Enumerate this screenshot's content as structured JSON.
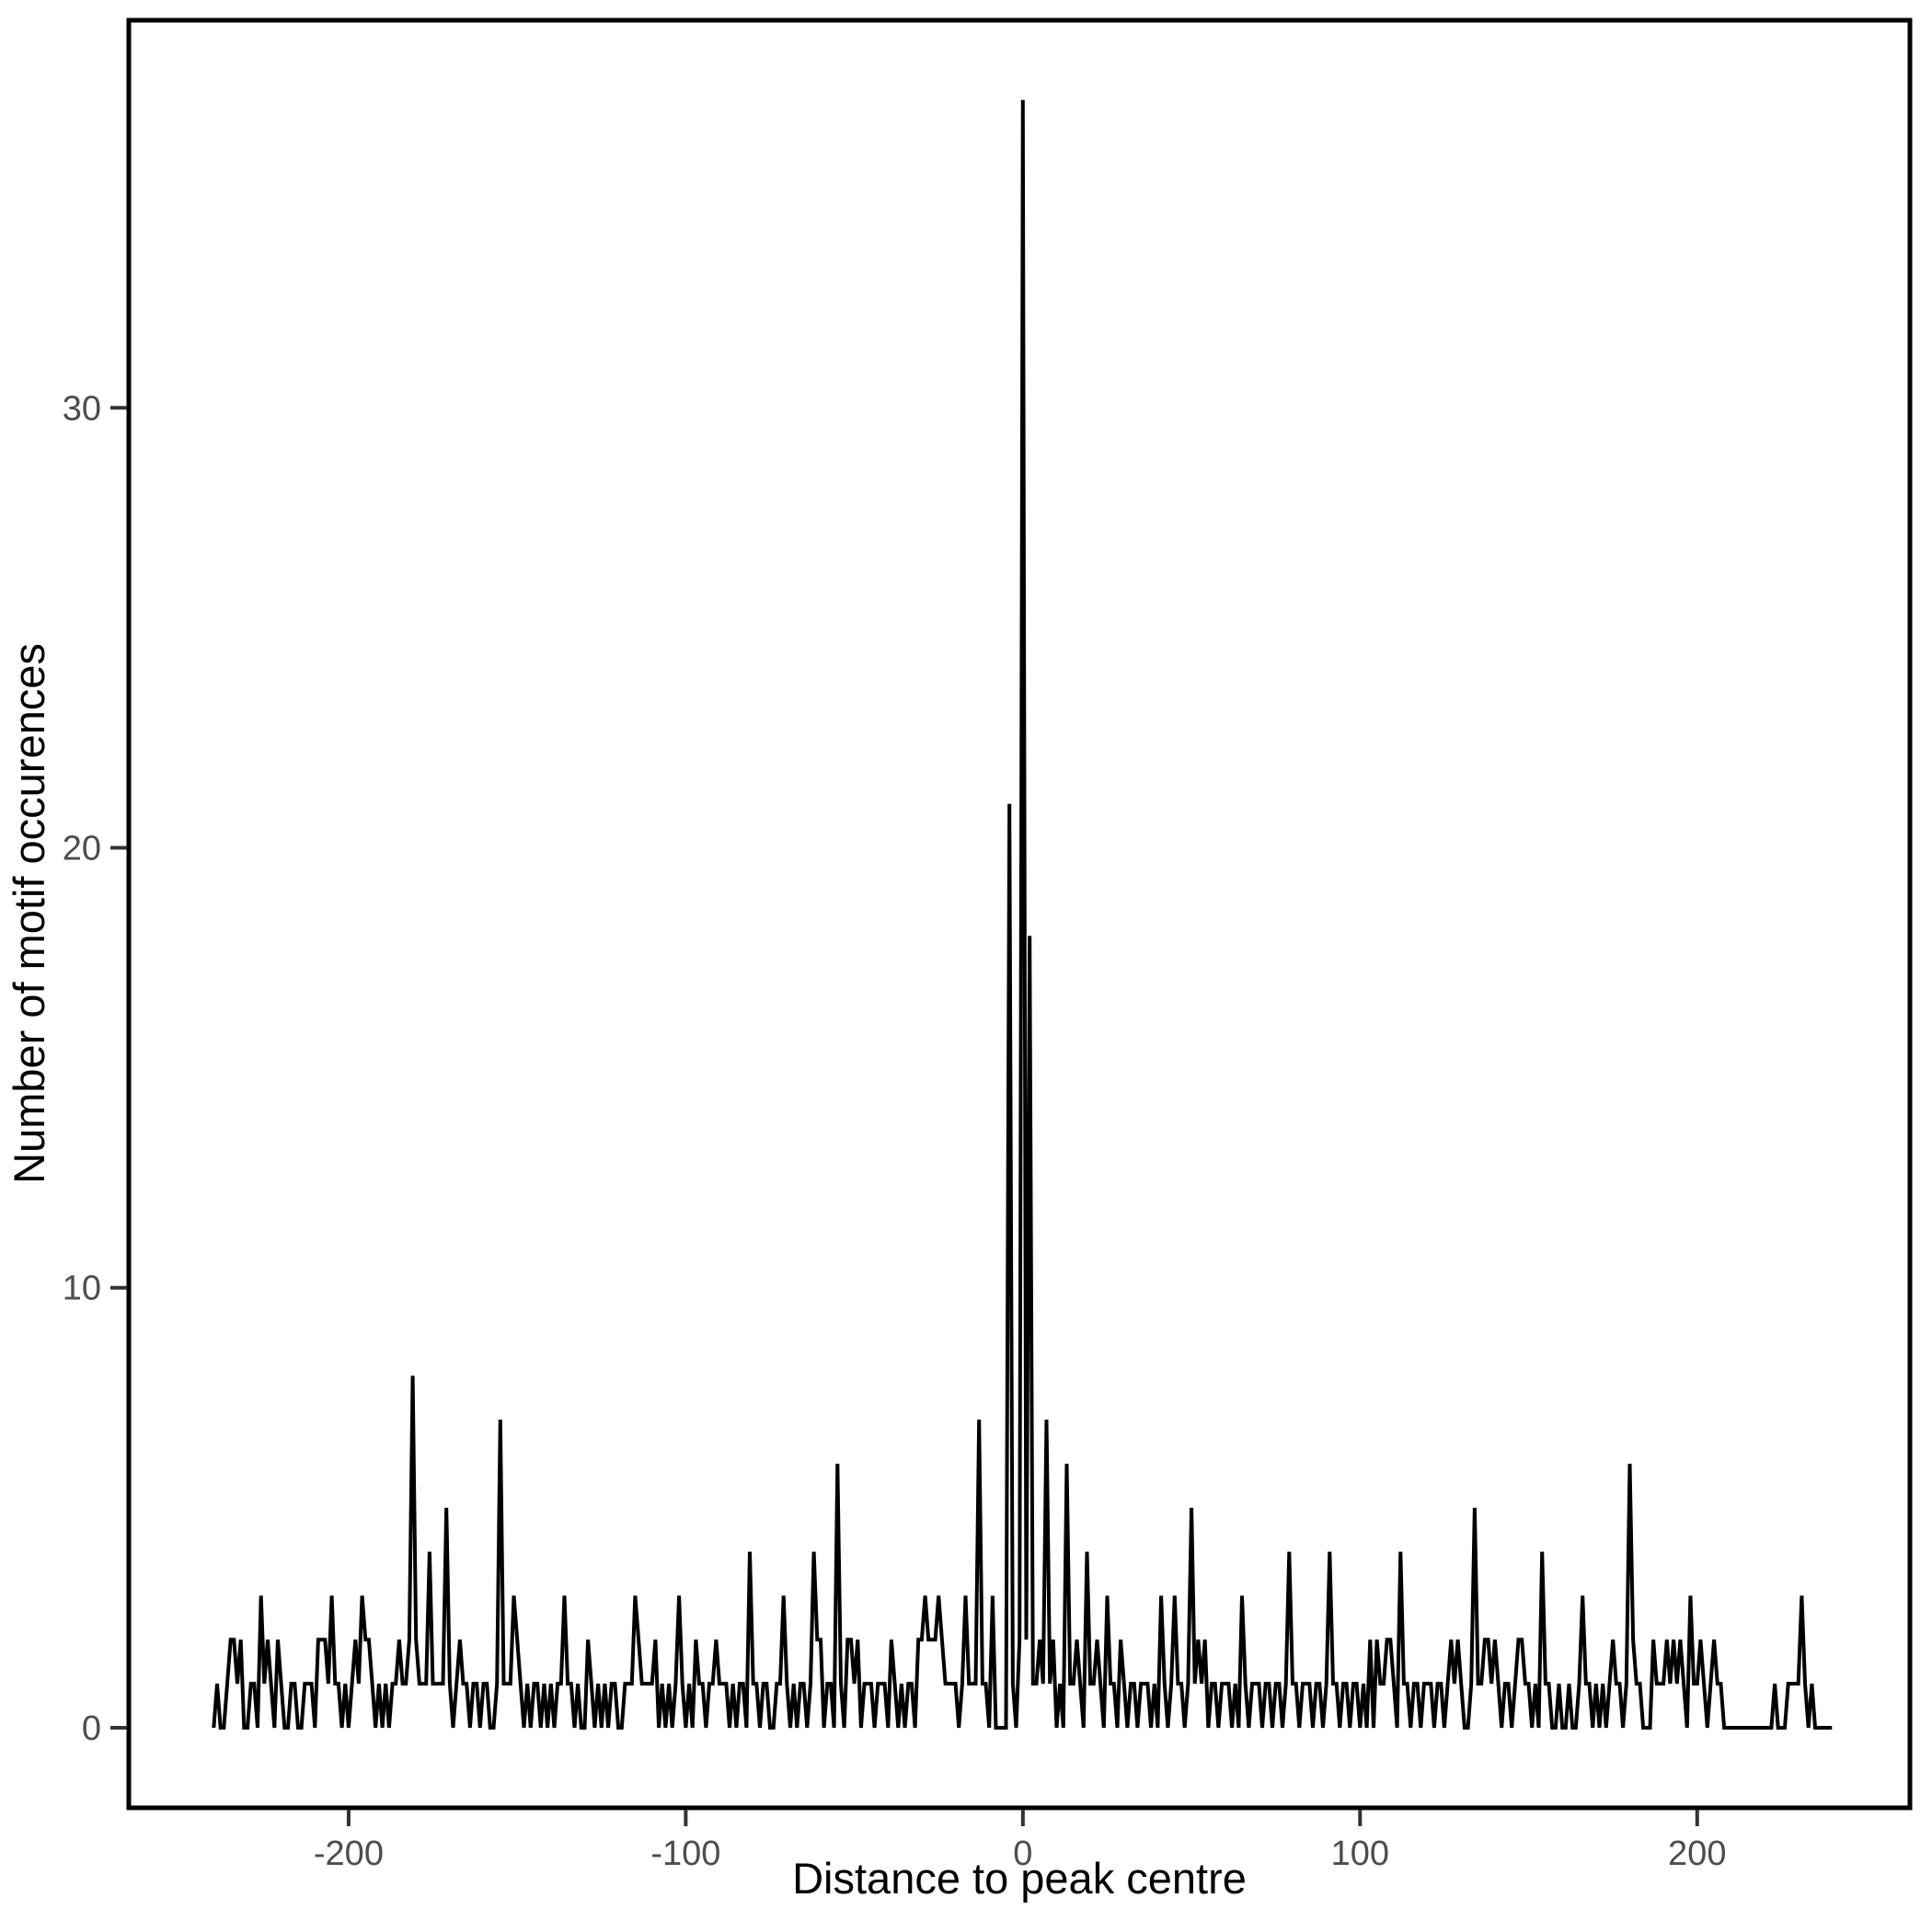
{
  "figure": {
    "background": "#FFFFFF",
    "panel_border_color": "#000000",
    "line_color": "#000000",
    "tick_mark_color": "#333333",
    "tick_label_color": "#4D4D4D",
    "axis_title_color": "#000000"
  },
  "chart_data": {
    "type": "line",
    "title": "",
    "xlabel": "Distance to peak centre",
    "ylabel": "Number of motif occurences",
    "legend": false,
    "grid": false,
    "x_start": -240,
    "x_step": 1,
    "x_ticks": [
      -200,
      -100,
      0,
      100,
      200
    ],
    "y_ticks": [
      0,
      10,
      20,
      30
    ],
    "x_range": [
      -265.2,
      263.1
    ],
    "y_range": [
      -1.82,
      38.81
    ],
    "values": [
      0,
      1,
      0,
      0,
      1,
      2,
      2,
      1,
      2,
      0,
      0,
      1,
      1,
      0,
      3,
      1,
      2,
      1,
      0,
      2,
      1,
      0,
      0,
      1,
      1,
      0,
      0,
      1,
      1,
      1,
      0,
      2,
      2,
      2,
      1,
      3,
      1,
      1,
      0,
      1,
      0,
      1,
      2,
      1,
      3,
      2,
      2,
      1,
      0,
      1,
      0,
      1,
      0,
      1,
      1,
      2,
      1,
      1,
      2,
      8,
      2,
      1,
      1,
      1,
      4,
      1,
      1,
      1,
      1,
      5,
      1,
      0,
      1,
      2,
      1,
      1,
      0,
      1,
      1,
      0,
      1,
      1,
      0,
      0,
      1,
      7,
      1,
      1,
      1,
      3,
      2,
      1,
      0,
      1,
      0,
      1,
      1,
      0,
      1,
      0,
      1,
      0,
      1,
      1,
      3,
      1,
      1,
      0,
      1,
      0,
      0,
      2,
      1,
      0,
      1,
      0,
      1,
      0,
      1,
      1,
      0,
      0,
      1,
      1,
      1,
      3,
      2,
      1,
      1,
      1,
      1,
      2,
      0,
      1,
      0,
      1,
      0,
      1,
      3,
      1,
      0,
      1,
      0,
      2,
      1,
      1,
      0,
      1,
      1,
      2,
      1,
      1,
      1,
      0,
      1,
      0,
      1,
      1,
      0,
      4,
      1,
      1,
      0,
      1,
      1,
      0,
      0,
      1,
      1,
      3,
      1,
      0,
      1,
      0,
      1,
      1,
      0,
      1,
      4,
      2,
      2,
      0,
      1,
      1,
      0,
      6,
      1,
      0,
      2,
      2,
      1,
      2,
      0,
      1,
      1,
      1,
      0,
      1,
      1,
      1,
      0,
      2,
      1,
      0,
      1,
      0,
      1,
      1,
      0,
      2,
      2,
      3,
      2,
      2,
      2,
      3,
      2,
      1,
      1,
      1,
      1,
      0,
      1,
      3,
      1,
      1,
      1,
      7,
      1,
      1,
      0,
      3,
      0,
      0,
      0,
      0,
      21,
      1,
      0,
      2,
      37,
      2,
      18,
      1,
      1,
      2,
      1,
      7,
      1,
      2,
      0,
      1,
      0,
      6,
      1,
      1,
      2,
      1,
      0,
      4,
      1,
      1,
      2,
      1,
      0,
      3,
      1,
      1,
      0,
      2,
      1,
      0,
      1,
      1,
      0,
      1,
      1,
      1,
      0,
      1,
      0,
      3,
      1,
      0,
      1,
      3,
      1,
      1,
      0,
      1,
      5,
      1,
      2,
      1,
      2,
      0,
      1,
      1,
      0,
      1,
      1,
      1,
      0,
      1,
      0,
      3,
      1,
      0,
      1,
      1,
      1,
      0,
      1,
      1,
      0,
      1,
      1,
      0,
      1,
      4,
      1,
      1,
      0,
      1,
      1,
      1,
      0,
      1,
      1,
      0,
      1,
      4,
      1,
      1,
      0,
      1,
      1,
      0,
      1,
      1,
      0,
      1,
      0,
      2,
      0,
      2,
      1,
      1,
      2,
      2,
      1,
      0,
      4,
      1,
      1,
      0,
      1,
      1,
      0,
      1,
      1,
      1,
      0,
      1,
      1,
      0,
      1,
      2,
      1,
      2,
      1,
      0,
      0,
      1,
      5,
      1,
      1,
      2,
      2,
      1,
      2,
      1,
      0,
      1,
      1,
      0,
      1,
      2,
      2,
      1,
      1,
      0,
      1,
      0,
      4,
      1,
      1,
      0,
      0,
      1,
      0,
      0,
      1,
      0,
      0,
      1,
      3,
      1,
      1,
      0,
      1,
      0,
      1,
      0,
      1,
      2,
      1,
      1,
      0,
      1,
      6,
      2,
      1,
      1,
      0,
      0,
      0,
      2,
      1,
      1,
      1,
      2,
      1,
      2,
      1,
      2,
      1,
      0,
      3,
      1,
      1,
      2,
      1,
      0,
      1,
      2,
      1,
      1,
      0,
      0,
      0,
      0,
      0,
      0,
      0,
      0,
      0,
      0,
      0,
      0,
      0,
      0,
      0,
      1,
      0,
      0,
      0,
      1,
      1,
      1,
      1,
      3,
      1,
      0,
      1,
      0,
      0,
      0,
      0,
      0,
      0
    ]
  }
}
